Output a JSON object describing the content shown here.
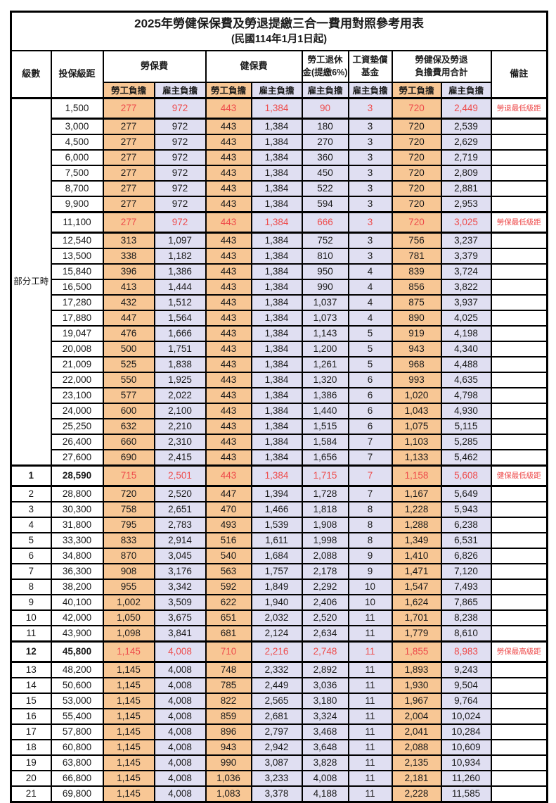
{
  "title": "2025年勞健保保費及勞退提繳三合一費用對照參考用表",
  "subtitle": "(民國114年1月1日起)",
  "header": {
    "level": "級數",
    "salary": "投保級距",
    "labor": "勞保費",
    "health": "健保費",
    "pension_line1": "勞工退休",
    "pension_line2": "金(提繳6%)",
    "fund_line1": "工資墊償",
    "fund_line2": "基金",
    "total_line1": "勞健保及勞退",
    "total_line2": "負擔費用合計",
    "note": "備註",
    "worker": "勞工負擔",
    "employer": "雇主負擔"
  },
  "part_time_label": "部分工時",
  "part_time_span": 23,
  "colors": {
    "worker_bg": "#F8C795",
    "employer_bg": "#E0DFF2",
    "red_text": "#EE4B4B"
  },
  "rows": [
    {
      "level": "",
      "salary": "1,500",
      "values": [
        "277",
        "972",
        "443",
        "1,384",
        "90",
        "3",
        "720",
        "2,449"
      ],
      "note": "勞退最低級距",
      "special": true,
      "bold": false
    },
    {
      "level": "",
      "salary": "3,000",
      "values": [
        "277",
        "972",
        "443",
        "1,384",
        "180",
        "3",
        "720",
        "2,539"
      ],
      "note": "",
      "special": false,
      "bold": false
    },
    {
      "level": "",
      "salary": "4,500",
      "values": [
        "277",
        "972",
        "443",
        "1,384",
        "270",
        "3",
        "720",
        "2,629"
      ],
      "note": "",
      "special": false,
      "bold": false
    },
    {
      "level": "",
      "salary": "6,000",
      "values": [
        "277",
        "972",
        "443",
        "1,384",
        "360",
        "3",
        "720",
        "2,719"
      ],
      "note": "",
      "special": false,
      "bold": false
    },
    {
      "level": "",
      "salary": "7,500",
      "values": [
        "277",
        "972",
        "443",
        "1,384",
        "450",
        "3",
        "720",
        "2,809"
      ],
      "note": "",
      "special": false,
      "bold": false
    },
    {
      "level": "",
      "salary": "8,700",
      "values": [
        "277",
        "972",
        "443",
        "1,384",
        "522",
        "3",
        "720",
        "2,881"
      ],
      "note": "",
      "special": false,
      "bold": false
    },
    {
      "level": "",
      "salary": "9,900",
      "values": [
        "277",
        "972",
        "443",
        "1,384",
        "594",
        "3",
        "720",
        "2,953"
      ],
      "note": "",
      "special": false,
      "bold": false
    },
    {
      "level": "",
      "salary": "11,100",
      "values": [
        "277",
        "972",
        "443",
        "1,384",
        "666",
        "3",
        "720",
        "3,025"
      ],
      "note": "勞保最低級距",
      "special": true,
      "bold": false
    },
    {
      "level": "",
      "salary": "12,540",
      "values": [
        "313",
        "1,097",
        "443",
        "1,384",
        "752",
        "3",
        "756",
        "3,237"
      ],
      "note": "",
      "special": false,
      "bold": false
    },
    {
      "level": "",
      "salary": "13,500",
      "values": [
        "338",
        "1,182",
        "443",
        "1,384",
        "810",
        "3",
        "781",
        "3,379"
      ],
      "note": "",
      "special": false,
      "bold": false
    },
    {
      "level": "",
      "salary": "15,840",
      "values": [
        "396",
        "1,386",
        "443",
        "1,384",
        "950",
        "4",
        "839",
        "3,724"
      ],
      "note": "",
      "special": false,
      "bold": false
    },
    {
      "level": "",
      "salary": "16,500",
      "values": [
        "413",
        "1,444",
        "443",
        "1,384",
        "990",
        "4",
        "856",
        "3,822"
      ],
      "note": "",
      "special": false,
      "bold": false
    },
    {
      "level": "",
      "salary": "17,280",
      "values": [
        "432",
        "1,512",
        "443",
        "1,384",
        "1,037",
        "4",
        "875",
        "3,937"
      ],
      "note": "",
      "special": false,
      "bold": false
    },
    {
      "level": "",
      "salary": "17,880",
      "values": [
        "447",
        "1,564",
        "443",
        "1,384",
        "1,073",
        "4",
        "890",
        "4,025"
      ],
      "note": "",
      "special": false,
      "bold": false
    },
    {
      "level": "",
      "salary": "19,047",
      "values": [
        "476",
        "1,666",
        "443",
        "1,384",
        "1,143",
        "5",
        "919",
        "4,198"
      ],
      "note": "",
      "special": false,
      "bold": false
    },
    {
      "level": "",
      "salary": "20,008",
      "values": [
        "500",
        "1,751",
        "443",
        "1,384",
        "1,200",
        "5",
        "943",
        "4,340"
      ],
      "note": "",
      "special": false,
      "bold": false
    },
    {
      "level": "",
      "salary": "21,009",
      "values": [
        "525",
        "1,838",
        "443",
        "1,384",
        "1,261",
        "5",
        "968",
        "4,488"
      ],
      "note": "",
      "special": false,
      "bold": false
    },
    {
      "level": "",
      "salary": "22,000",
      "values": [
        "550",
        "1,925",
        "443",
        "1,384",
        "1,320",
        "6",
        "993",
        "4,635"
      ],
      "note": "",
      "special": false,
      "bold": false
    },
    {
      "level": "",
      "salary": "23,100",
      "values": [
        "577",
        "2,022",
        "443",
        "1,384",
        "1,386",
        "6",
        "1,020",
        "4,798"
      ],
      "note": "",
      "special": false,
      "bold": false
    },
    {
      "level": "",
      "salary": "24,000",
      "values": [
        "600",
        "2,100",
        "443",
        "1,384",
        "1,440",
        "6",
        "1,043",
        "4,930"
      ],
      "note": "",
      "special": false,
      "bold": false
    },
    {
      "level": "",
      "salary": "25,250",
      "values": [
        "632",
        "2,210",
        "443",
        "1,384",
        "1,515",
        "6",
        "1,075",
        "5,115"
      ],
      "note": "",
      "special": false,
      "bold": false
    },
    {
      "level": "",
      "salary": "26,400",
      "values": [
        "660",
        "2,310",
        "443",
        "1,384",
        "1,584",
        "7",
        "1,103",
        "5,285"
      ],
      "note": "",
      "special": false,
      "bold": false
    },
    {
      "level": "",
      "salary": "27,600",
      "values": [
        "690",
        "2,415",
        "443",
        "1,384",
        "1,656",
        "7",
        "1,133",
        "5,462"
      ],
      "note": "",
      "special": false,
      "bold": false
    },
    {
      "level": "1",
      "salary": "28,590",
      "values": [
        "715",
        "2,501",
        "443",
        "1,384",
        "1,715",
        "7",
        "1,158",
        "5,608"
      ],
      "note": "健保最低級距",
      "special": true,
      "bold": true
    },
    {
      "level": "2",
      "salary": "28,800",
      "values": [
        "720",
        "2,520",
        "447",
        "1,394",
        "1,728",
        "7",
        "1,167",
        "5,649"
      ],
      "note": "",
      "special": false,
      "bold": false
    },
    {
      "level": "3",
      "salary": "30,300",
      "values": [
        "758",
        "2,651",
        "470",
        "1,466",
        "1,818",
        "8",
        "1,228",
        "5,943"
      ],
      "note": "",
      "special": false,
      "bold": false
    },
    {
      "level": "4",
      "salary": "31,800",
      "values": [
        "795",
        "2,783",
        "493",
        "1,539",
        "1,908",
        "8",
        "1,288",
        "6,238"
      ],
      "note": "",
      "special": false,
      "bold": false
    },
    {
      "level": "5",
      "salary": "33,300",
      "values": [
        "833",
        "2,914",
        "516",
        "1,611",
        "1,998",
        "8",
        "1,349",
        "6,531"
      ],
      "note": "",
      "special": false,
      "bold": false
    },
    {
      "level": "6",
      "salary": "34,800",
      "values": [
        "870",
        "3,045",
        "540",
        "1,684",
        "2,088",
        "9",
        "1,410",
        "6,826"
      ],
      "note": "",
      "special": false,
      "bold": false
    },
    {
      "level": "7",
      "salary": "36,300",
      "values": [
        "908",
        "3,176",
        "563",
        "1,757",
        "2,178",
        "9",
        "1,471",
        "7,120"
      ],
      "note": "",
      "special": false,
      "bold": false
    },
    {
      "level": "8",
      "salary": "38,200",
      "values": [
        "955",
        "3,342",
        "592",
        "1,849",
        "2,292",
        "10",
        "1,547",
        "7,493"
      ],
      "note": "",
      "special": false,
      "bold": false
    },
    {
      "level": "9",
      "salary": "40,100",
      "values": [
        "1,002",
        "3,509",
        "622",
        "1,940",
        "2,406",
        "10",
        "1,624",
        "7,865"
      ],
      "note": "",
      "special": false,
      "bold": false
    },
    {
      "level": "10",
      "salary": "42,000",
      "values": [
        "1,050",
        "3,675",
        "651",
        "2,032",
        "2,520",
        "11",
        "1,701",
        "8,238"
      ],
      "note": "",
      "special": false,
      "bold": false
    },
    {
      "level": "11",
      "salary": "43,900",
      "values": [
        "1,098",
        "3,841",
        "681",
        "2,124",
        "2,634",
        "11",
        "1,779",
        "8,610"
      ],
      "note": "",
      "special": false,
      "bold": false
    },
    {
      "level": "12",
      "salary": "45,800",
      "values": [
        "1,145",
        "4,008",
        "710",
        "2,216",
        "2,748",
        "11",
        "1,855",
        "8,983"
      ],
      "note": "勞保最高級距",
      "special": true,
      "bold": true
    },
    {
      "level": "13",
      "salary": "48,200",
      "values": [
        "1,145",
        "4,008",
        "748",
        "2,332",
        "2,892",
        "11",
        "1,893",
        "9,243"
      ],
      "note": "",
      "special": false,
      "bold": false
    },
    {
      "level": "14",
      "salary": "50,600",
      "values": [
        "1,145",
        "4,008",
        "785",
        "2,449",
        "3,036",
        "11",
        "1,930",
        "9,504"
      ],
      "note": "",
      "special": false,
      "bold": false
    },
    {
      "level": "15",
      "salary": "53,000",
      "values": [
        "1,145",
        "4,008",
        "822",
        "2,565",
        "3,180",
        "11",
        "1,967",
        "9,764"
      ],
      "note": "",
      "special": false,
      "bold": false
    },
    {
      "level": "16",
      "salary": "55,400",
      "values": [
        "1,145",
        "4,008",
        "859",
        "2,681",
        "3,324",
        "11",
        "2,004",
        "10,024"
      ],
      "note": "",
      "special": false,
      "bold": false
    },
    {
      "level": "17",
      "salary": "57,800",
      "values": [
        "1,145",
        "4,008",
        "896",
        "2,797",
        "3,468",
        "11",
        "2,041",
        "10,284"
      ],
      "note": "",
      "special": false,
      "bold": false
    },
    {
      "level": "18",
      "salary": "60,800",
      "values": [
        "1,145",
        "4,008",
        "943",
        "2,942",
        "3,648",
        "11",
        "2,088",
        "10,609"
      ],
      "note": "",
      "special": false,
      "bold": false
    },
    {
      "level": "19",
      "salary": "63,800",
      "values": [
        "1,145",
        "4,008",
        "990",
        "3,087",
        "3,828",
        "11",
        "2,135",
        "10,934"
      ],
      "note": "",
      "special": false,
      "bold": false
    },
    {
      "level": "20",
      "salary": "66,800",
      "values": [
        "1,145",
        "4,008",
        "1,036",
        "3,233",
        "4,008",
        "11",
        "2,181",
        "11,260"
      ],
      "note": "",
      "special": false,
      "bold": false
    },
    {
      "level": "21",
      "salary": "69,800",
      "values": [
        "1,145",
        "4,008",
        "1,083",
        "3,378",
        "4,188",
        "11",
        "2,228",
        "11,585"
      ],
      "note": "",
      "special": false,
      "bold": false
    }
  ]
}
